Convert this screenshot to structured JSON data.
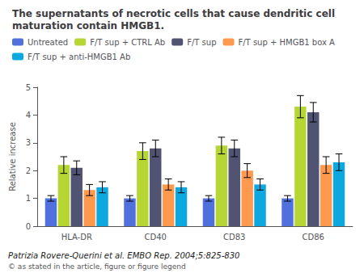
{
  "chart_data": {
    "type": "bar",
    "title": "The supernatants of necrotic cells that cause dendritic cell maturation contain HMGB1.",
    "categories": [
      "HLA-DR",
      "CD40",
      "CD83",
      "CD86"
    ],
    "series": [
      {
        "name": "Untreated",
        "values": [
          1.0,
          1.0,
          1.0,
          1.0
        ],
        "errors": [
          0.1,
          0.1,
          0.1,
          0.1
        ]
      },
      {
        "name": "F/T sup + CTRL Ab",
        "values": [
          2.2,
          2.7,
          2.9,
          4.3
        ],
        "errors": [
          0.3,
          0.3,
          0.3,
          0.4
        ]
      },
      {
        "name": "F/T sup",
        "values": [
          2.1,
          2.8,
          2.8,
          4.1
        ],
        "errors": [
          0.25,
          0.3,
          0.3,
          0.35
        ]
      },
      {
        "name": "F/T sup + HMGB1 box A",
        "values": [
          1.3,
          1.5,
          2.0,
          2.2
        ],
        "errors": [
          0.2,
          0.2,
          0.25,
          0.3
        ]
      },
      {
        "name": "F/T sup + anti-HMGB1 Ab",
        "values": [
          1.4,
          1.4,
          1.5,
          2.3
        ],
        "errors": [
          0.2,
          0.2,
          0.2,
          0.3
        ]
      }
    ],
    "ylabel": "Relative increase",
    "ylim": [
      0,
      5
    ],
    "yticks": [
      0,
      1,
      2,
      3,
      4,
      5
    ],
    "grid": false,
    "legend": "upper left",
    "annotations": [
      "Patrizia Rovere-Querini et al. EMBO Rep. 2004;5:825-830",
      "© as stated in the article, figure or figure legend"
    ]
  }
}
